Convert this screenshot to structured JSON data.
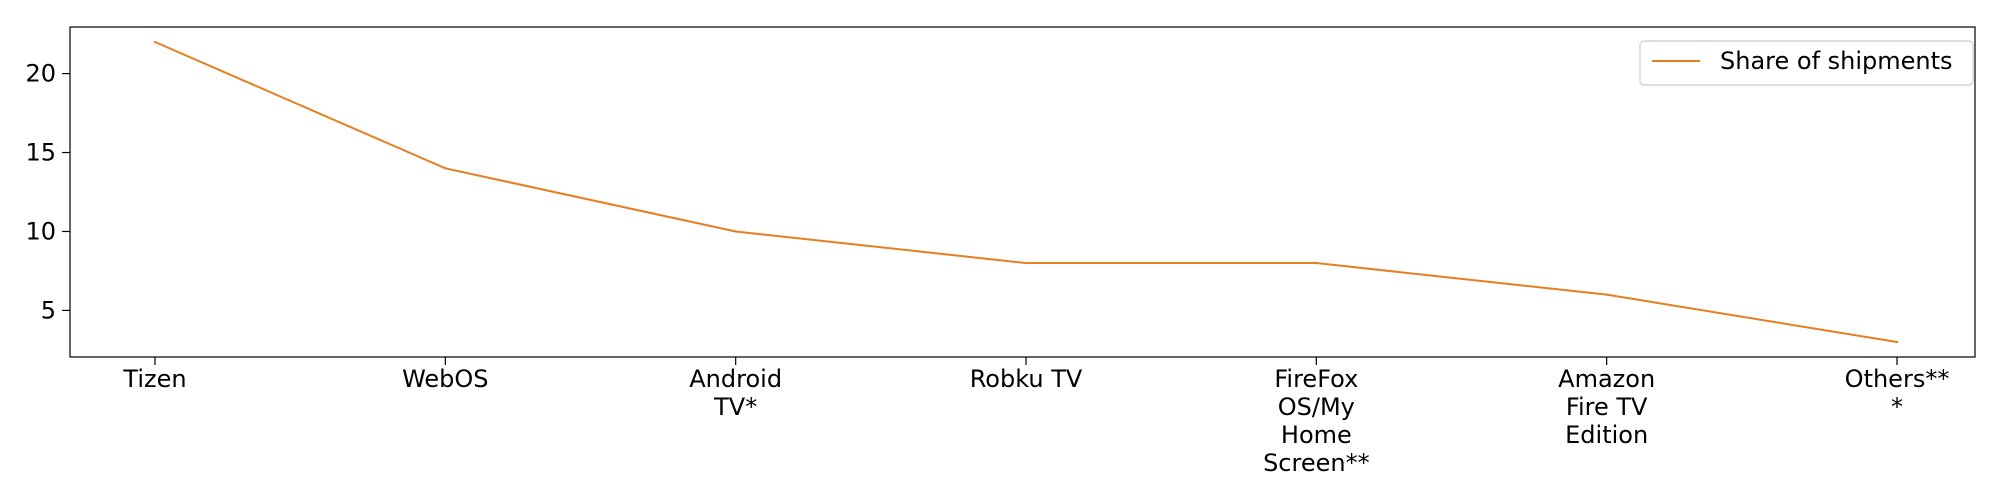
{
  "chart_data": {
    "type": "line",
    "categories": [
      [
        "Tizen"
      ],
      [
        "WebOS"
      ],
      [
        "Android",
        "TV*"
      ],
      [
        "Robku TV"
      ],
      [
        "FireFox",
        "OS/My",
        "Home",
        "Screen**"
      ],
      [
        "Amazon",
        "Fire TV",
        "Edition"
      ],
      [
        "Others**",
        "*"
      ]
    ],
    "series": [
      {
        "name": "Share of shipments",
        "values": [
          22,
          14,
          10,
          8,
          8,
          6,
          3
        ],
        "color": "#e67e22"
      }
    ],
    "yticks": [
      5,
      10,
      15,
      20
    ],
    "ylim": [
      2.05,
      22.95
    ],
    "title": "",
    "xlabel": "",
    "ylabel": "",
    "legend": "top-right",
    "grid": false
  }
}
